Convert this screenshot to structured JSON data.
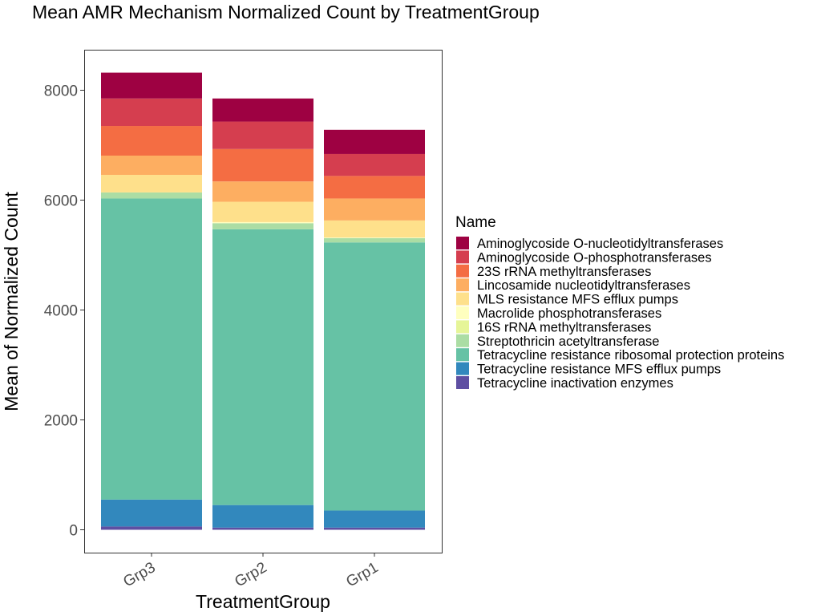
{
  "chart_data": {
    "type": "bar",
    "stacked": true,
    "title": "Mean AMR Mechanism Normalized Count by TreatmentGroup",
    "xlabel": "TreatmentGroup",
    "ylabel": "Mean of Normalized Count",
    "categories": [
      "Grp3",
      "Grp2",
      "Grp1"
    ],
    "ylim": [
      -400,
      8730
    ],
    "yticks": [
      0,
      2000,
      4000,
      6000,
      8000
    ],
    "yticklabels": [
      "0",
      "2000",
      "4000",
      "6000",
      "8000"
    ],
    "grid": false,
    "legend": {
      "title": "Name",
      "position": "right"
    },
    "series": [
      {
        "name": "Aminoglycoside O-nucleotidyltransferases",
        "color": "#9E0142",
        "values": [
          470,
          420,
          440
        ]
      },
      {
        "name": "Aminoglycoside O-phosphotransferases",
        "color": "#D53E4F",
        "values": [
          500,
          500,
          400
        ]
      },
      {
        "name": "23S rRNA methyltransferases",
        "color": "#F46D43",
        "values": [
          540,
          590,
          410
        ]
      },
      {
        "name": "Lincosamide nucleotidyltransferases",
        "color": "#FDAE61",
        "values": [
          350,
          370,
          400
        ]
      },
      {
        "name": "MLS resistance MFS efflux pumps",
        "color": "#FEE08B",
        "values": [
          320,
          370,
          310
        ]
      },
      {
        "name": "Macrolide phosphotransferases",
        "color": "#FFFFBF",
        "values": [
          0,
          20,
          10
        ]
      },
      {
        "name": "16S rRNA methyltransferases",
        "color": "#E6F598",
        "values": [
          0,
          0,
          0
        ]
      },
      {
        "name": "Streptothricin acetyltransferase",
        "color": "#ABDDA4",
        "values": [
          110,
          110,
          80
        ]
      },
      {
        "name": "Tetracycline resistance ribosomal protection proteins",
        "color": "#66C2A5",
        "values": [
          5480,
          5020,
          4880
        ]
      },
      {
        "name": "Tetracycline resistance MFS efflux pumps",
        "color": "#3288BD",
        "values": [
          490,
          410,
          310
        ]
      },
      {
        "name": "Tetracycline inactivation enzymes",
        "color": "#5E4FA2",
        "values": [
          60,
          40,
          40
        ]
      }
    ]
  }
}
